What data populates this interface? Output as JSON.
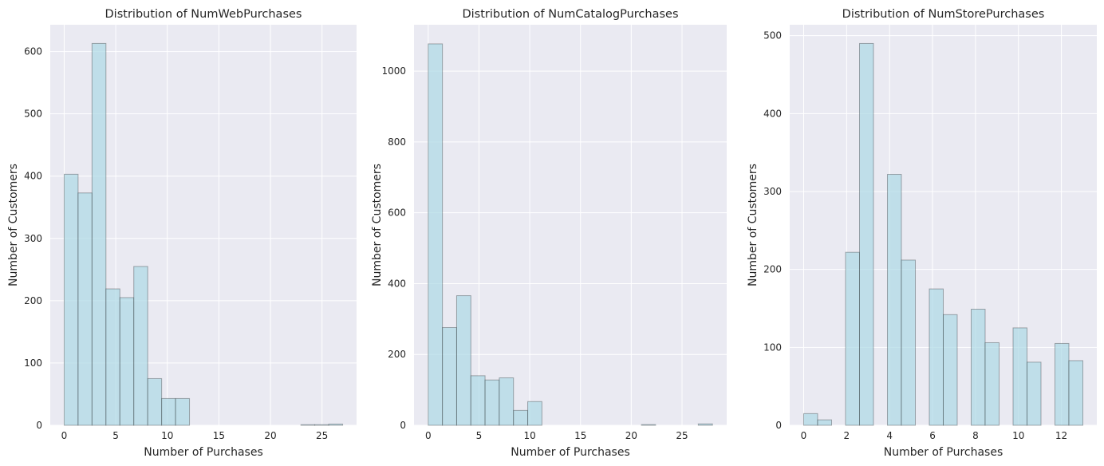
{
  "chart_data": [
    {
      "type": "bar",
      "title": "Distribution of NumWebPurchases",
      "xlabel": "Number of Purchases",
      "ylabel": "Number of Customers",
      "xlim": [
        -1.35,
        28.35
      ],
      "ylim": [
        0,
        643
      ],
      "xticks": [
        0,
        5,
        10,
        15,
        20,
        25
      ],
      "yticks": [
        0,
        100,
        200,
        300,
        400,
        500,
        600
      ],
      "bin_width": 1.35,
      "bins": [
        {
          "x0": 0,
          "x1": 1.35,
          "value": 403
        },
        {
          "x0": 1.35,
          "x1": 2.7,
          "value": 373
        },
        {
          "x0": 2.7,
          "x1": 4.05,
          "value": 613
        },
        {
          "x0": 4.05,
          "x1": 5.4,
          "value": 219
        },
        {
          "x0": 5.4,
          "x1": 6.75,
          "value": 205
        },
        {
          "x0": 6.75,
          "x1": 8.1,
          "value": 255
        },
        {
          "x0": 8.1,
          "x1": 9.45,
          "value": 75
        },
        {
          "x0": 9.45,
          "x1": 10.8,
          "value": 43
        },
        {
          "x0": 10.8,
          "x1": 12.15,
          "value": 43
        },
        {
          "x0": 12.15,
          "x1": 13.5,
          "value": 0
        },
        {
          "x0": 13.5,
          "x1": 14.85,
          "value": 0
        },
        {
          "x0": 14.85,
          "x1": 16.2,
          "value": 0
        },
        {
          "x0": 16.2,
          "x1": 17.55,
          "value": 0
        },
        {
          "x0": 17.55,
          "x1": 18.9,
          "value": 0
        },
        {
          "x0": 18.9,
          "x1": 20.25,
          "value": 0
        },
        {
          "x0": 20.25,
          "x1": 21.6,
          "value": 0
        },
        {
          "x0": 21.6,
          "x1": 22.95,
          "value": 0
        },
        {
          "x0": 22.95,
          "x1": 24.3,
          "value": 1
        },
        {
          "x0": 24.3,
          "x1": 25.65,
          "value": 1
        },
        {
          "x0": 25.65,
          "x1": 27.0,
          "value": 2
        }
      ],
      "grid": true,
      "bar_color": "#add8e6",
      "edge_color": "#000000"
    },
    {
      "type": "bar",
      "title": "Distribution of NumCatalogPurchases",
      "xlabel": "Number of Purchases",
      "ylabel": "Number of Customers",
      "xlim": [
        -1.4,
        29.4
      ],
      "ylim": [
        0,
        1131
      ],
      "xticks": [
        0,
        5,
        10,
        15,
        20,
        25
      ],
      "yticks": [
        0,
        200,
        400,
        600,
        800,
        1000
      ],
      "bin_width": 1.4,
      "bins": [
        {
          "x0": 0,
          "x1": 1.4,
          "value": 1077
        },
        {
          "x0": 1.4,
          "x1": 2.8,
          "value": 276
        },
        {
          "x0": 2.8,
          "x1": 4.2,
          "value": 366
        },
        {
          "x0": 4.2,
          "x1": 5.6,
          "value": 140
        },
        {
          "x0": 5.6,
          "x1": 7.0,
          "value": 128
        },
        {
          "x0": 7.0,
          "x1": 8.4,
          "value": 134
        },
        {
          "x0": 8.4,
          "x1": 9.8,
          "value": 42
        },
        {
          "x0": 9.8,
          "x1": 11.2,
          "value": 67
        },
        {
          "x0": 11.2,
          "x1": 12.6,
          "value": 0
        },
        {
          "x0": 12.6,
          "x1": 14.0,
          "value": 0
        },
        {
          "x0": 14.0,
          "x1": 15.4,
          "value": 0
        },
        {
          "x0": 15.4,
          "x1": 16.8,
          "value": 0
        },
        {
          "x0": 16.8,
          "x1": 18.2,
          "value": 0
        },
        {
          "x0": 18.2,
          "x1": 19.6,
          "value": 0
        },
        {
          "x0": 19.6,
          "x1": 21.0,
          "value": 0
        },
        {
          "x0": 21.0,
          "x1": 22.4,
          "value": 2
        },
        {
          "x0": 22.4,
          "x1": 23.8,
          "value": 0
        },
        {
          "x0": 23.8,
          "x1": 25.2,
          "value": 0
        },
        {
          "x0": 25.2,
          "x1": 26.6,
          "value": 0
        },
        {
          "x0": 26.6,
          "x1": 28.0,
          "value": 4
        }
      ],
      "grid": true,
      "bar_color": "#add8e6",
      "edge_color": "#000000"
    },
    {
      "type": "bar",
      "title": "Distribution of NumStorePurchases",
      "xlabel": "Number of Purchases",
      "ylabel": "Number of Customers",
      "xlim": [
        -0.65,
        13.65
      ],
      "ylim": [
        0,
        514
      ],
      "xticks": [
        0,
        2,
        4,
        6,
        8,
        10,
        12
      ],
      "yticks": [
        0,
        100,
        200,
        300,
        400,
        500
      ],
      "bin_width": 0.65,
      "bins": [
        {
          "x0": 0,
          "x1": 0.65,
          "value": 15
        },
        {
          "x0": 0.65,
          "x1": 1.3,
          "value": 7
        },
        {
          "x0": 1.3,
          "x1": 1.95,
          "value": 0
        },
        {
          "x0": 1.95,
          "x1": 2.6,
          "value": 222
        },
        {
          "x0": 2.6,
          "x1": 3.25,
          "value": 490
        },
        {
          "x0": 3.25,
          "x1": 3.9,
          "value": 0
        },
        {
          "x0": 3.9,
          "x1": 4.55,
          "value": 322
        },
        {
          "x0": 4.55,
          "x1": 5.2,
          "value": 212
        },
        {
          "x0": 5.2,
          "x1": 5.85,
          "value": 0
        },
        {
          "x0": 5.85,
          "x1": 6.5,
          "value": 175
        },
        {
          "x0": 6.5,
          "x1": 7.15,
          "value": 142
        },
        {
          "x0": 7.15,
          "x1": 7.8,
          "value": 0
        },
        {
          "x0": 7.8,
          "x1": 8.45,
          "value": 149
        },
        {
          "x0": 8.45,
          "x1": 9.1,
          "value": 106
        },
        {
          "x0": 9.1,
          "x1": 9.75,
          "value": 0
        },
        {
          "x0": 9.75,
          "x1": 10.4,
          "value": 125
        },
        {
          "x0": 10.4,
          "x1": 11.05,
          "value": 81
        },
        {
          "x0": 11.05,
          "x1": 11.7,
          "value": 0
        },
        {
          "x0": 11.7,
          "x1": 12.35,
          "value": 105
        },
        {
          "x0": 12.35,
          "x1": 13.0,
          "value": 83
        }
      ],
      "grid": true,
      "bar_color": "#add8e6",
      "edge_color": "#000000"
    }
  ],
  "style": {
    "background": "#ffffff",
    "axes_face": "#eaeaf2",
    "grid_color": "#ffffff",
    "bar_fill_opacity": 0.7,
    "edge_opacity": 0.3
  }
}
